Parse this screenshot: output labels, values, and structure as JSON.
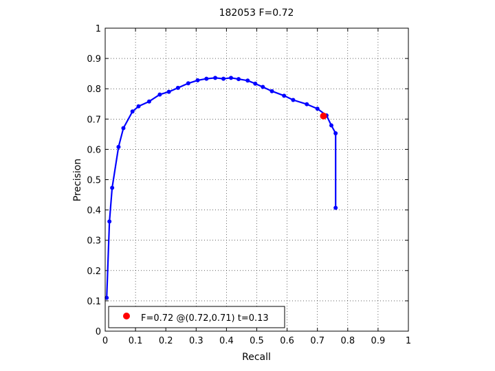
{
  "chart_data": {
    "type": "line",
    "title": "182053 F=0.72",
    "xlabel": "Recall",
    "ylabel": "Precision",
    "xlim": [
      0,
      1
    ],
    "ylim": [
      0,
      1
    ],
    "xticks": [
      "0",
      "0.1",
      "0.2",
      "0.3",
      "0.4",
      "0.5",
      "0.6",
      "0.7",
      "0.8",
      "0.9",
      "1"
    ],
    "yticks": [
      "0",
      "0.1",
      "0.2",
      "0.3",
      "0.4",
      "0.5",
      "0.6",
      "0.7",
      "0.8",
      "0.9",
      "1"
    ],
    "grid": true,
    "grid_style": "dotted",
    "series": [
      {
        "color": "#0000ff",
        "marker": "dot",
        "points": [
          [
            0.76,
            0.407
          ],
          [
            0.76,
            0.653
          ],
          [
            0.746,
            0.679
          ],
          [
            0.73,
            0.712
          ],
          [
            0.7,
            0.734
          ],
          [
            0.665,
            0.749
          ],
          [
            0.62,
            0.763
          ],
          [
            0.59,
            0.777
          ],
          [
            0.55,
            0.792
          ],
          [
            0.52,
            0.806
          ],
          [
            0.495,
            0.817
          ],
          [
            0.47,
            0.827
          ],
          [
            0.44,
            0.832
          ],
          [
            0.415,
            0.836
          ],
          [
            0.39,
            0.833
          ],
          [
            0.363,
            0.836
          ],
          [
            0.334,
            0.833
          ],
          [
            0.305,
            0.828
          ],
          [
            0.274,
            0.818
          ],
          [
            0.24,
            0.803
          ],
          [
            0.21,
            0.79
          ],
          [
            0.18,
            0.781
          ],
          [
            0.145,
            0.758
          ],
          [
            0.11,
            0.742
          ],
          [
            0.09,
            0.725
          ],
          [
            0.06,
            0.67
          ],
          [
            0.044,
            0.608
          ],
          [
            0.023,
            0.473
          ],
          [
            0.014,
            0.362
          ],
          [
            0.005,
            0.11
          ]
        ]
      }
    ],
    "best_point": {
      "x": 0.72,
      "y": 0.71,
      "color": "#ff0000"
    },
    "legend": {
      "position": "bottom-left",
      "entries": [
        {
          "label": "F=0.72 @(0.72,0.71) t=0.13",
          "color": "#ff0000"
        }
      ]
    }
  }
}
